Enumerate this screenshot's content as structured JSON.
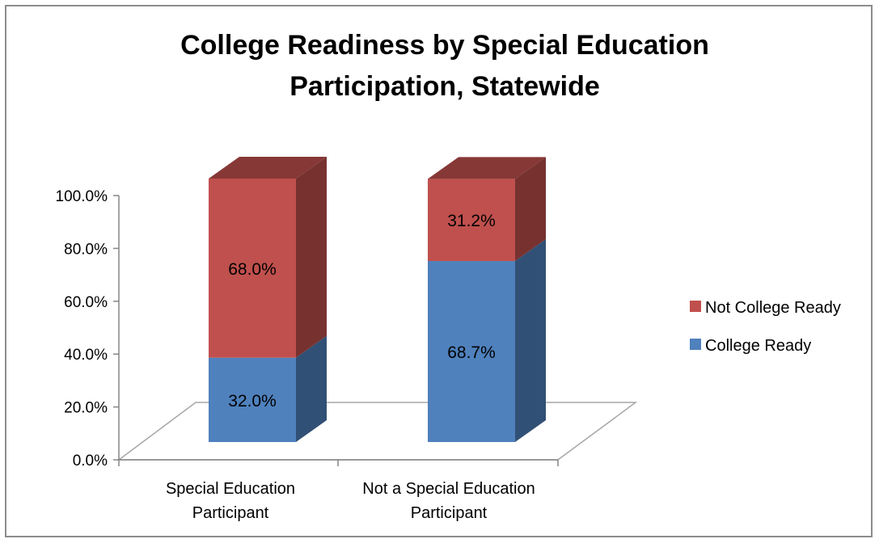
{
  "chart_data": {
    "type": "bar",
    "stacked": true,
    "three_d": true,
    "title": "College Readiness by Special Education Participation, Statewide",
    "title_lines": [
      "College Readiness by Special Education",
      "Participation, Statewide"
    ],
    "categories": [
      "Special Education Participant",
      "Not a Special Education Participant"
    ],
    "category_label_lines": [
      [
        "Special Education",
        "Participant"
      ],
      [
        "Not a Special Education",
        "Participant"
      ]
    ],
    "series": [
      {
        "name": "College Ready",
        "values": [
          32.0,
          68.7
        ],
        "labels": [
          "32.0%",
          "68.7%"
        ],
        "color": "#4f81bd"
      },
      {
        "name": "Not College Ready",
        "values": [
          68.0,
          31.2
        ],
        "labels": [
          "68.0%",
          "31.2%"
        ],
        "color": "#c0504d"
      }
    ],
    "ylim": [
      0,
      100
    ],
    "yticks": [
      0,
      20,
      40,
      60,
      80,
      100
    ],
    "ytick_labels": [
      "0.0%",
      "20.0%",
      "40.0%",
      "60.0%",
      "80.0%",
      "100.0%"
    ],
    "xlabel": "",
    "ylabel": "",
    "legend": {
      "position": "right",
      "order": [
        "Not College Ready",
        "College Ready"
      ]
    },
    "grid": false
  }
}
